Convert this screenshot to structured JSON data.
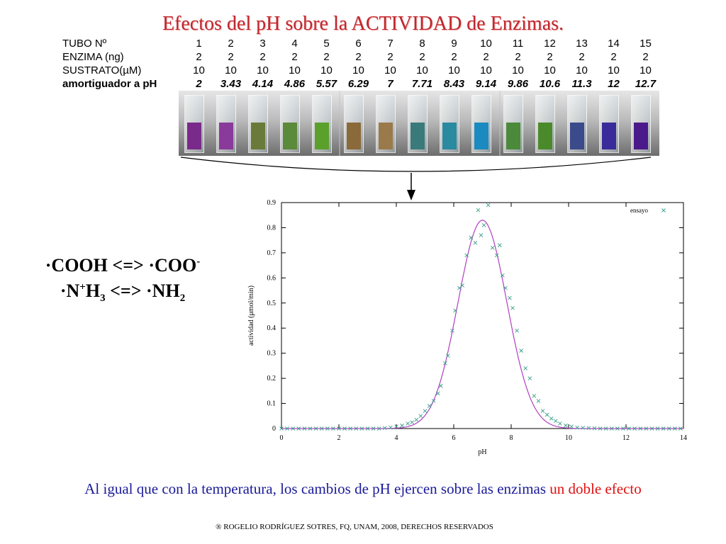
{
  "title": "Efectos del pH sobre la ACTIVIDAD de Enzimas.",
  "table": {
    "rows": [
      {
        "label": "TUBO Nº",
        "values": [
          "1",
          "2",
          "3",
          "4",
          "5",
          "6",
          "7",
          "8",
          "9",
          "10",
          "11",
          "12",
          "13",
          "14",
          "15"
        ]
      },
      {
        "label": "ENZIMA (ng)",
        "values": [
          "2",
          "2",
          "2",
          "2",
          "2",
          "2",
          "2",
          "2",
          "2",
          "2",
          "2",
          "2",
          "2",
          "2",
          "2"
        ]
      },
      {
        "label": "SUSTRATO(µM)",
        "values": [
          "10",
          "10",
          "10",
          "10",
          "10",
          "10",
          "10",
          "10",
          "10",
          "10",
          "10",
          "10",
          "10",
          "10",
          "10"
        ]
      },
      {
        "label": "amortiguador a pH",
        "values": [
          "2",
          "3.43",
          "4.14",
          "4.86",
          "5.57",
          "6.29",
          "7",
          "7.71",
          "8.43",
          "9.14",
          "9.86",
          "10.6",
          "11.3",
          "12",
          "12.7"
        ]
      }
    ]
  },
  "tube_colors": [
    "#7a2a8a",
    "#8a3a9a",
    "#6a7a3a",
    "#5a8a3a",
    "#5aa02a",
    "#8a6a3a",
    "#9a7a4a",
    "#3a7a7a",
    "#2a8aa0",
    "#1a8ac0",
    "#4a8a3a",
    "#4a8a2a",
    "#3a4a8a",
    "#3a2a9a",
    "#4a1a8a"
  ],
  "formulas": {
    "line1_main": "·COOH <=> ·COO",
    "line1_sup": "-",
    "line2_a": "·N",
    "line2_sup": "+",
    "line2_b": "H",
    "line2_sub3": "3",
    "line2_c": " <=> ·NH",
    "line2_sub2": "2"
  },
  "chart_data": {
    "type": "scatter",
    "xlabel": "pH",
    "ylabel": "actividad (μmol/min)",
    "xlim": [
      0,
      14
    ],
    "ylim": [
      0,
      0.9
    ],
    "xticks": [
      0,
      2,
      4,
      6,
      8,
      10,
      12,
      14
    ],
    "yticks": [
      0,
      0.1,
      0.2,
      0.3,
      0.4,
      0.5,
      0.6,
      0.7,
      0.8,
      0.9
    ],
    "legend": "top-right",
    "series": [
      {
        "name": "ensayo",
        "color": "#3a9e8a",
        "marker": "x",
        "x": [
          0,
          0.2,
          0.4,
          0.6,
          0.8,
          1.0,
          1.2,
          1.4,
          1.6,
          1.8,
          2.0,
          2.2,
          2.4,
          2.6,
          2.8,
          3.0,
          3.2,
          3.4,
          3.6,
          3.8,
          4.0,
          4.2,
          4.4,
          4.55,
          4.7,
          4.85,
          5.0,
          5.15,
          5.3,
          5.45,
          5.55,
          5.7,
          5.8,
          5.95,
          6.05,
          6.2,
          6.3,
          6.45,
          6.6,
          6.75,
          6.85,
          6.95,
          7.05,
          7.2,
          7.35,
          7.5,
          7.6,
          7.7,
          7.8,
          7.95,
          8.05,
          8.2,
          8.35,
          8.5,
          8.65,
          8.8,
          8.95,
          9.1,
          9.25,
          9.4,
          9.55,
          9.7,
          9.9,
          10.1,
          10.3,
          10.5,
          10.7,
          10.9,
          11.1,
          11.3,
          11.5,
          11.7,
          11.9,
          12.1,
          12.3,
          12.5,
          12.7,
          12.9,
          13.1,
          13.3,
          13.5,
          13.7,
          13.9
        ],
        "y": [
          0,
          0,
          0,
          0,
          0,
          0,
          0,
          0,
          0,
          0,
          0,
          0,
          0,
          0,
          0,
          0,
          0,
          0,
          0.002,
          0.004,
          0.008,
          0.012,
          0.02,
          0.025,
          0.035,
          0.05,
          0.07,
          0.09,
          0.11,
          0.14,
          0.17,
          0.26,
          0.29,
          0.39,
          0.47,
          0.56,
          0.57,
          0.69,
          0.76,
          0.74,
          0.87,
          0.77,
          0.81,
          0.89,
          0.72,
          0.69,
          0.73,
          0.61,
          0.56,
          0.52,
          0.48,
          0.39,
          0.31,
          0.24,
          0.2,
          0.13,
          0.11,
          0.07,
          0.055,
          0.04,
          0.03,
          0.02,
          0.012,
          0.008,
          0.004,
          0.003,
          0.002,
          0.001,
          0,
          0,
          0,
          0,
          0,
          0,
          0,
          0,
          0,
          0,
          0,
          0,
          0,
          0,
          0
        ]
      }
    ],
    "fit_curve": {
      "color": "#b040c0",
      "center": 7.0,
      "peak": 0.83,
      "sigma": 0.85
    }
  },
  "caption": {
    "main": "Al igual que con la temperatura, los cambios de pH ejercen sobre las enzimas ",
    "highlight": "un doble efecto"
  },
  "copyright": "® ROGELIO RODRÍGUEZ SOTRES, FQ, UNAM, 2008, DERECHOS RESERVADOS"
}
